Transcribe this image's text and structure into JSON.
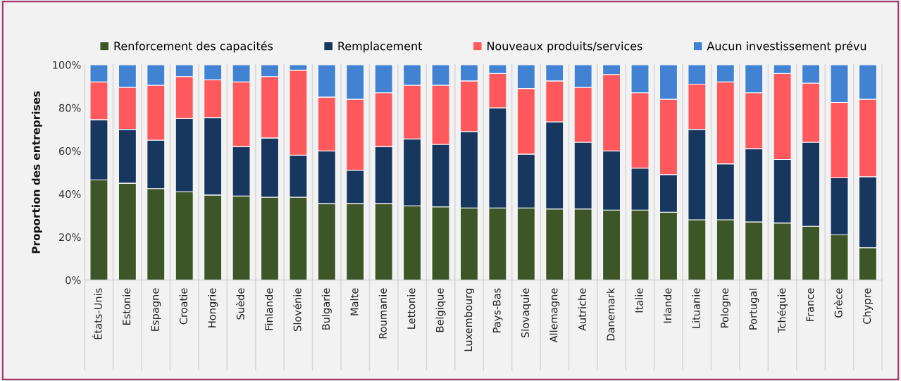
{
  "chart_data": {
    "type": "bar",
    "stacked": true,
    "ylabel": "Proportion des entreprises",
    "categories": [
      "États-Unis",
      "Estonie",
      "Espagne",
      "Croatie",
      "Hongrie",
      "Suède",
      "Finlande",
      "Slovénie",
      "Bulgarie",
      "Malte",
      "Roumanie",
      "Lettonie",
      "Belgique",
      "Luxembourg",
      "Pays-Bas",
      "Slovaquie",
      "Allemagne",
      "Autriche",
      "Danemark",
      "Italie",
      "Irlande",
      "Lituanie",
      "Pologne",
      "Portugal",
      "Tchéquie",
      "France",
      "Grèce",
      "Chypre"
    ],
    "series": [
      {
        "name": "Renforcement des capacités",
        "color": "#3c5628",
        "values": [
          46.5,
          45,
          42.5,
          41,
          39.5,
          39,
          38.5,
          38.5,
          35.5,
          35.5,
          35.5,
          34.5,
          34,
          33.5,
          33.5,
          33.5,
          33,
          33,
          32.5,
          32.5,
          31.5,
          28,
          28,
          27,
          26.5,
          25,
          21,
          15
        ]
      },
      {
        "name": "Remplacement",
        "color": "#18375f",
        "values": [
          28,
          25,
          22.5,
          34,
          36,
          23,
          27.5,
          19.5,
          24.5,
          15.5,
          26.5,
          31,
          29,
          35.5,
          46.5,
          25,
          40.5,
          31,
          27.5,
          19.5,
          17.5,
          42,
          26,
          34,
          29.5,
          39,
          26.5,
          33
        ]
      },
      {
        "name": "Nouveaux produits/services",
        "color": "#ff585d",
        "values": [
          17.5,
          19.5,
          25.5,
          19.5,
          17.5,
          30,
          28.5,
          39.5,
          25,
          33,
          25,
          25,
          27.5,
          23.5,
          16,
          30.5,
          19,
          25.5,
          35.5,
          35,
          35,
          21,
          38,
          26,
          40,
          27.5,
          35,
          36
        ]
      },
      {
        "name": "Aucun investissement prévu",
        "color": "#4282d3",
        "values": [
          8,
          10.5,
          9.5,
          5.5,
          7,
          8,
          5.5,
          2.5,
          15,
          16,
          13,
          9.5,
          9.5,
          7.5,
          4,
          11,
          7.5,
          10.5,
          4.5,
          13,
          16,
          9,
          8,
          13,
          4,
          8.5,
          17.5,
          16
        ]
      }
    ],
    "ylim": [
      0,
      100
    ],
    "yticks": [
      {
        "value": 0,
        "label": "0%"
      },
      {
        "value": 20,
        "label": "20%"
      },
      {
        "value": 40,
        "label": "40%"
      },
      {
        "value": 60,
        "label": "60%"
      },
      {
        "value": 80,
        "label": "80%"
      },
      {
        "value": 100,
        "label": "100%"
      }
    ],
    "grid": "x",
    "legend": "top"
  }
}
